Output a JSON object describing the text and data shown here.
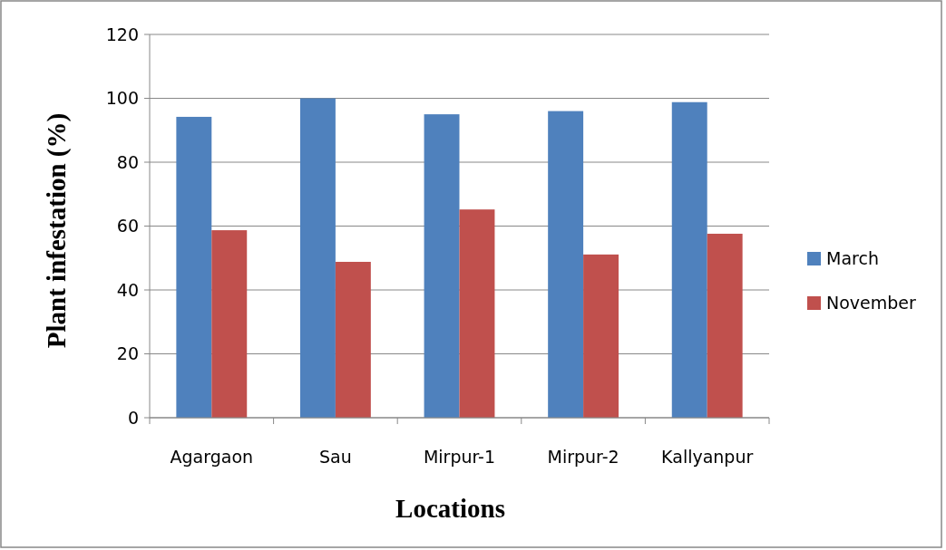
{
  "chart_data": {
    "type": "bar",
    "xlabel": "Locations",
    "ylabel": "Plant infestation (%)",
    "categories": [
      "Agargaon",
      "Sau",
      "Mirpur-1",
      "Mirpur-2",
      "Kallyanpur"
    ],
    "series": [
      {
        "name": "March",
        "color": "#4f81bd",
        "values": [
          94.2,
          100,
          95,
          96,
          98.8
        ]
      },
      {
        "name": "November",
        "color": "#c0504d",
        "values": [
          58.7,
          48.8,
          65.2,
          51.1,
          57.6
        ]
      }
    ],
    "ylim": [
      0,
      120
    ],
    "yticks": [
      0,
      20,
      40,
      60,
      80,
      100,
      120
    ],
    "grid": "y",
    "legend": "right"
  }
}
